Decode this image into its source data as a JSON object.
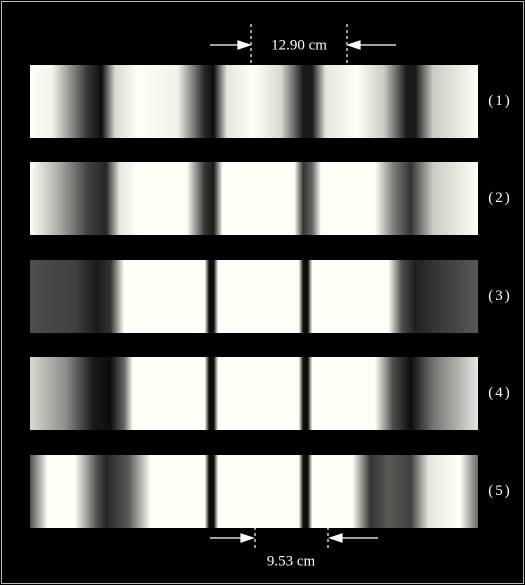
{
  "figure": {
    "top_label": "12.90 cm",
    "bottom_label": "9.53 cm",
    "panels": [
      "(1)",
      "(2)",
      "(3)",
      "(4)",
      "(5)"
    ]
  }
}
